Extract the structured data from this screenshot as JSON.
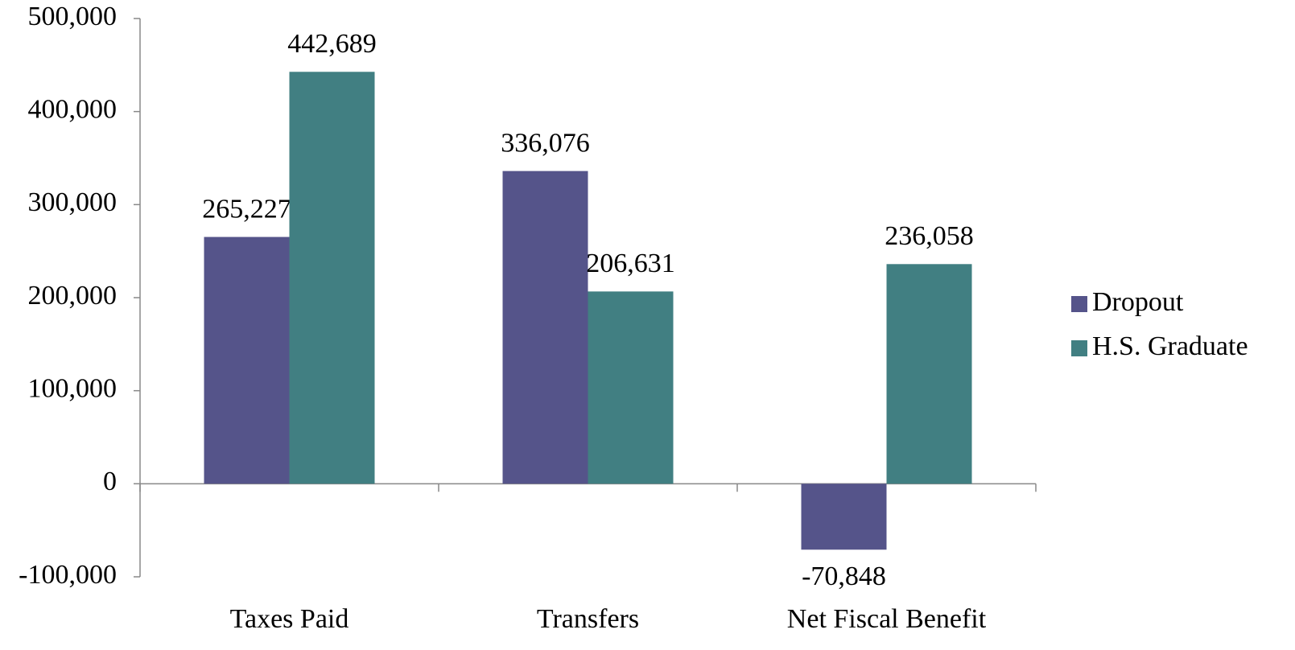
{
  "chart_data": {
    "type": "bar",
    "categories": [
      "Taxes Paid",
      "Transfers",
      "Net Fiscal Benefit"
    ],
    "series": [
      {
        "name": "Dropout",
        "color": "#55548a",
        "values": [
          265227,
          336076,
          -70848
        ],
        "value_labels": [
          "265,227",
          "336,076",
          "-70,848"
        ]
      },
      {
        "name": "H.S. Graduate",
        "color": "#417f82",
        "values": [
          442689,
          206631,
          236058
        ],
        "value_labels": [
          "442,689",
          "206,631",
          "236,058"
        ]
      }
    ],
    "ylim": [
      -100000,
      500000
    ],
    "yticks": [
      {
        "value": -100000,
        "label": "-100,000"
      },
      0,
      {
        "value": 100000,
        "label": "100,000"
      },
      {
        "value": 200000,
        "label": "200,000"
      },
      {
        "value": 300000,
        "label": "300,000"
      },
      {
        "value": 400000,
        "label": "400,000"
      },
      {
        "value": 500000,
        "label": "500,000"
      }
    ],
    "legend": "right"
  }
}
